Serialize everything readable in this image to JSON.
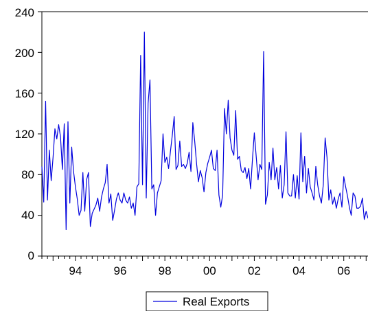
{
  "chart_data": {
    "type": "line",
    "title": "",
    "xlabel": "",
    "ylabel": "",
    "x_range": [
      "1992-07",
      "2007-06"
    ],
    "frequency": "monthly",
    "ylim": [
      0,
      240
    ],
    "y_ticks": [
      0,
      40,
      80,
      120,
      160,
      200,
      240
    ],
    "x_tick_labels": [
      "94",
      "96",
      "98",
      "00",
      "02",
      "04",
      "06"
    ],
    "grid": false,
    "legend_position": "bottom-center",
    "series": [
      {
        "name": "Real Exports",
        "color": "#0000dd",
        "values": [
          88,
          53,
          152,
          55,
          104,
          74,
          97,
          125,
          115,
          129,
          117,
          85,
          130,
          26,
          132,
          52,
          107,
          83,
          68,
          56,
          40,
          45,
          82,
          44,
          75,
          82,
          29,
          42,
          46,
          50,
          57,
          44,
          58,
          66,
          72,
          90,
          52,
          61,
          35,
          45,
          56,
          62,
          55,
          52,
          62,
          55,
          52,
          58,
          47,
          52,
          40,
          68,
          71,
          197,
          70,
          220,
          57,
          150,
          173,
          66,
          70,
          40,
          62,
          68,
          74,
          120,
          92,
          97,
          86,
          103,
          119,
          137,
          85,
          89,
          113,
          88,
          90,
          86,
          91,
          102,
          83,
          131,
          113,
          91,
          73,
          84,
          77,
          63,
          82,
          91,
          97,
          104,
          86,
          84,
          104,
          60,
          48,
          60,
          145,
          120,
          153,
          116,
          104,
          99,
          143,
          95,
          98,
          84,
          82,
          87,
          76,
          86,
          66,
          95,
          121,
          98,
          75,
          90,
          85,
          201,
          51,
          60,
          92,
          75,
          106,
          75,
          87,
          66,
          89,
          57,
          70,
          122,
          62,
          59,
          59,
          80,
          57,
          79,
          56,
          121,
          73,
          98,
          62,
          86,
          68,
          62,
          55,
          88,
          70,
          59,
          52,
          70,
          116,
          97,
          55,
          65,
          51,
          58,
          47,
          56,
          62,
          48,
          78,
          68,
          59,
          48,
          40,
          62,
          59,
          47,
          47,
          49,
          57,
          36,
          44,
          37
        ]
      }
    ]
  }
}
